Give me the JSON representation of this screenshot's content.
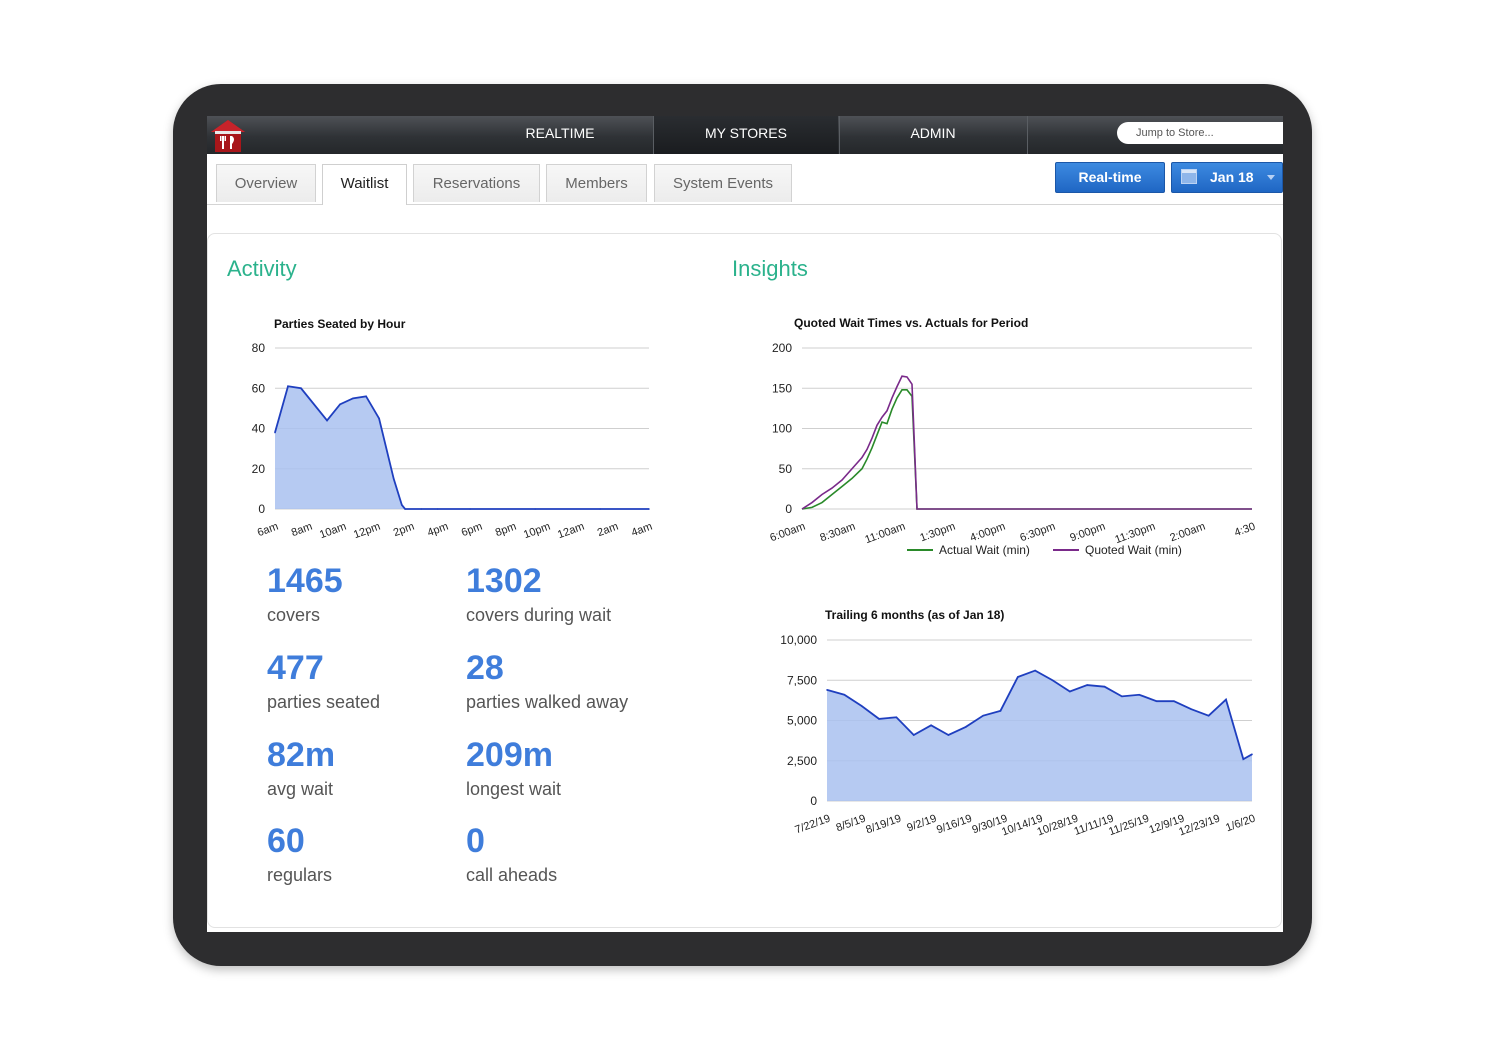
{
  "nav": {
    "tabs": [
      "REALTIME",
      "MY STORES",
      "ADMIN"
    ],
    "active_tab": "MY STORES",
    "jump_placeholder": "Jump to Store..."
  },
  "subtabs": [
    "Overview",
    "Waitlist",
    "Reservations",
    "Members",
    "System Events"
  ],
  "active_subtab": "Waitlist",
  "controls": {
    "realtime_label": "Real-time",
    "date_label": "Jan 18"
  },
  "activity": {
    "title": "Activity",
    "stats": [
      {
        "value": "1465",
        "label": "covers"
      },
      {
        "value": "1302",
        "label": "covers during wait"
      },
      {
        "value": "477",
        "label": "parties seated"
      },
      {
        "value": "28",
        "label": "parties walked away"
      },
      {
        "value": "82m",
        "label": "avg wait"
      },
      {
        "value": "209m",
        "label": "longest wait"
      },
      {
        "value": "60",
        "label": "regulars"
      },
      {
        "value": "0",
        "label": "call aheads"
      }
    ]
  },
  "insights": {
    "title": "Insights"
  },
  "colors": {
    "accent_green": "#2bb28c",
    "stat_blue": "#3f7ddb",
    "area_fill": "#a9c1f0",
    "area_line": "#1f3fbf",
    "actual_line": "#2a8a2a",
    "quoted_line": "#7a2a8a"
  },
  "chart_data": [
    {
      "type": "area",
      "title": "Parties Seated by Hour",
      "ylim": [
        0,
        80
      ],
      "yticks": [
        "80",
        "60",
        "40",
        "20",
        "0"
      ],
      "xticks": [
        "6am",
        "8am",
        "10am",
        "12pm",
        "2pm",
        "4pm",
        "6pm",
        "8pm",
        "10pm",
        "12am",
        "2am",
        "4am"
      ],
      "x": [
        0,
        0.8,
        1.6,
        3.2,
        4.0,
        4.8,
        5.6,
        6.4,
        7.3,
        7.8,
        8.0,
        9.0,
        10.0,
        12.0,
        16.0,
        20.0,
        23.0
      ],
      "values": [
        38,
        61,
        60,
        44,
        52,
        55,
        56,
        45,
        15,
        2,
        0,
        0,
        0,
        0,
        0,
        0,
        0
      ]
    },
    {
      "type": "line",
      "title": "Quoted Wait Times vs. Actuals for Period",
      "ylim": [
        0,
        200
      ],
      "yticks": [
        "200",
        "150",
        "100",
        "50",
        "0"
      ],
      "xticks": [
        "6:00am",
        "8:30am",
        "11:00am",
        "1:30pm",
        "4:00pm",
        "6:30pm",
        "9:00pm",
        "11:30pm",
        "2:00am",
        "4:30"
      ],
      "series": [
        {
          "name": "Actual Wait (min)",
          "x": [
            0,
            1,
            2,
            3,
            4,
            5,
            6,
            6.5,
            7,
            7.5,
            8,
            8.5,
            9,
            9.5,
            10,
            10.5,
            11,
            11.5,
            12,
            12.5,
            13,
            13.5,
            14,
            16,
            20,
            24,
            28,
            32,
            36,
            40,
            44,
            45
          ],
          "values": [
            0,
            2,
            8,
            18,
            28,
            38,
            50,
            62,
            76,
            92,
            108,
            106,
            124,
            138,
            148,
            148,
            140,
            0,
            0,
            0,
            0,
            0,
            0,
            0,
            0,
            0,
            0,
            0,
            0,
            0,
            0,
            0
          ]
        },
        {
          "name": "Quoted Wait (min)",
          "x": [
            0,
            1,
            2,
            3,
            4,
            5,
            6,
            6.5,
            7,
            7.5,
            8,
            8.5,
            9,
            9.5,
            10,
            10.5,
            11,
            11.5,
            12,
            12.5,
            13,
            13.5,
            14,
            16,
            20,
            24,
            28,
            32,
            36,
            40,
            44,
            45
          ],
          "values": [
            0,
            8,
            18,
            26,
            36,
            50,
            64,
            74,
            88,
            104,
            114,
            122,
            138,
            152,
            165,
            164,
            155,
            0,
            0,
            0,
            0,
            0,
            0,
            0,
            0,
            0,
            0,
            0,
            0,
            0,
            0,
            0
          ]
        }
      ]
    },
    {
      "type": "area",
      "title": "Trailing 6 months (as of Jan 18)",
      "ylim": [
        0,
        10000
      ],
      "yticks": [
        "10,000",
        "7,500",
        "5,000",
        "2,500",
        "0"
      ],
      "xticks": [
        "7/22/19",
        "8/5/19",
        "8/19/19",
        "9/2/19",
        "9/16/19",
        "9/30/19",
        "10/14/19",
        "10/28/19",
        "11/11/19",
        "11/25/19",
        "12/9/19",
        "12/23/19",
        "1/6/20"
      ],
      "x": [
        0,
        1,
        2,
        3,
        4,
        5,
        6,
        7,
        8,
        9,
        10,
        11,
        12,
        13,
        14,
        15,
        16,
        17,
        18,
        19,
        20,
        21,
        22,
        23,
        24,
        24.5
      ],
      "values": [
        6900,
        6600,
        5900,
        5100,
        5200,
        4100,
        4700,
        4100,
        4600,
        5300,
        5600,
        7700,
        8100,
        7500,
        6800,
        7200,
        7100,
        6500,
        6600,
        6200,
        6200,
        5700,
        5300,
        6300,
        2600,
        2900
      ]
    }
  ]
}
